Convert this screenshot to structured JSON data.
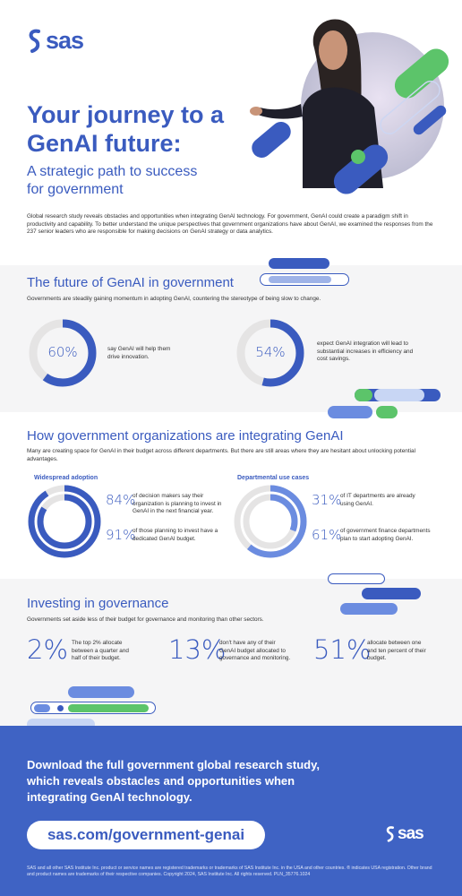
{
  "brand": {
    "logo_text": "sas",
    "accent": "#3a5bbf",
    "green": "#5cc46a",
    "footer_bg": "#3f63c4"
  },
  "hero": {
    "title_line1": "Your journey to a",
    "title_line2": "GenAI future:",
    "subtitle_line1": "A strategic path to success",
    "subtitle_line2": "for government",
    "intro": "Global research study reveals obstacles and opportunities when integrating GenAI technology. For government, GenAI could create a paradigm shift in productivity and capability. To better understand the unique perspectives that government organizations have about GenAI, we examined the responses from the 237 senior leaders who are responsible for making decisions on GenAI strategy or data analytics."
  },
  "future": {
    "title": "The future of GenAI in government",
    "desc": "Governments are steadily gaining momentum in adopting GenAI, countering the stereotype of being slow to change.",
    "stats": [
      {
        "value": "60%",
        "fraction": 0.6,
        "label": "say GenAI will help them drive innovation."
      },
      {
        "value": "54%",
        "fraction": 0.54,
        "label": "expect GenAI integration will lead to substantial increases in efficiency and cost savings."
      }
    ]
  },
  "integrating": {
    "title": "How government organizations are integrating GenAI",
    "desc": "Many are creating space for GenAI in their budget across different departments. But there are still areas where they are hesitant about unlocking potential advantages.",
    "left": {
      "heading": "Widespread adoption",
      "stats": [
        {
          "value": "84%",
          "fraction": 0.84,
          "label": "of decision makers say their organization is planning to invest in GenAI in the next financial year."
        },
        {
          "value": "91%",
          "fraction": 0.91,
          "label": "of those planning to invest have a dedicated GenAI budget."
        }
      ]
    },
    "right": {
      "heading": "Departmental use cases",
      "stats": [
        {
          "value": "31%",
          "fraction": 0.31,
          "label": "of IT departments are already using GenAI."
        },
        {
          "value": "61%",
          "fraction": 0.61,
          "label": "of government finance departments plan to start adopting GenAI."
        }
      ]
    }
  },
  "governance": {
    "title": "Investing in governance",
    "desc": "Governments set aside less of their budget for governance and monitoring than other sectors.",
    "stats": [
      {
        "value": "2%",
        "label": "The top 2% allocate between a quarter and half of their budget."
      },
      {
        "value": "13%",
        "label": "don't have any of their GenAI budget allocated to governance and monitoring."
      },
      {
        "value": "51%",
        "label": "allocate between one and ten percent of their budget."
      }
    ]
  },
  "cta": {
    "headline": "Download the full government global research study, which reveals obstacles and opportunities when integrating GenAI technology.",
    "url": "sas.com/government-genai"
  },
  "legal": "SAS and all other SAS Institute Inc. product or service names are registered trademarks or trademarks of SAS Institute Inc. in the USA and other countries. ® indicates USA registration. Other brand and product names are trademarks of their respective companies. Copyright 2024, SAS Institute Inc. All rights reserved. PLN_35776.1024"
}
